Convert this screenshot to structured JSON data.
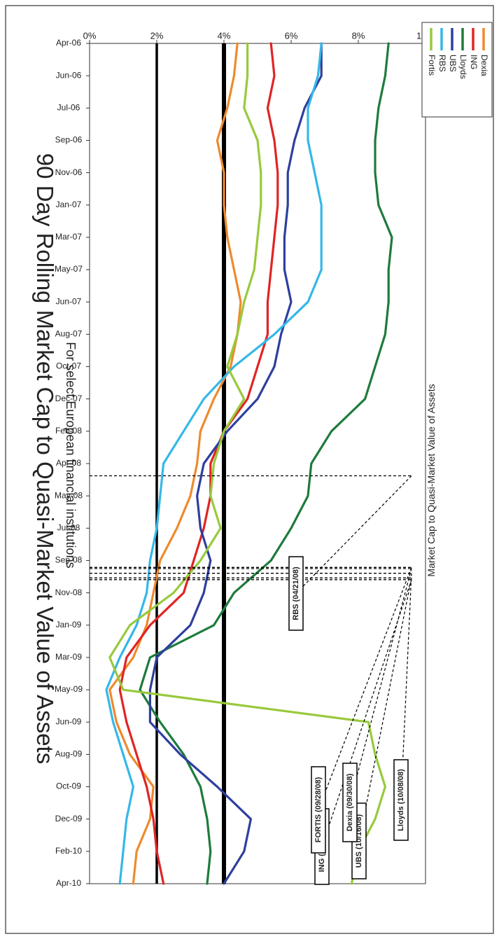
{
  "chart_data": {
    "type": "line",
    "title": "90 Day Rolling Market Cap to Quasi-Market Value of Assets",
    "subtitle": "For select European  financial institutions",
    "ylabel": "Market Cap to Quasi-Market Value of Assets",
    "xlabel": "",
    "orientation": "rotated-90-clockwise",
    "x_ticks": [
      "Apr-06",
      "Jun-06",
      "Jul-06",
      "Sep-06",
      "Nov-06",
      "Jan-07",
      "Mar-07",
      "May-07",
      "Jun-07",
      "Aug-07",
      "Oct-07",
      "Dec-07",
      "Feb-08",
      "Apr-08",
      "May-08",
      "Jul-08",
      "Sep-08",
      "Nov-08",
      "Jan-09",
      "Mar-09",
      "May-09",
      "Jun-09",
      "Aug-09",
      "Oct-09",
      "Dec-09",
      "Feb-10",
      "Apr-10"
    ],
    "y_ticks": [
      "0%",
      "2%",
      "4%",
      "6%",
      "8%",
      "10%"
    ],
    "ylim": [
      0,
      10
    ],
    "reference_lines": [
      2,
      4
    ],
    "legend_placement": "top-right",
    "series": [
      {
        "name": "Dexia",
        "color": "#ee8a2e",
        "values": [
          4.4,
          4.3,
          4.1,
          3.8,
          4.0,
          4.0,
          4.1,
          4.3,
          4.5,
          4.4,
          4.2,
          3.7,
          3.3,
          3.2,
          3.0,
          2.6,
          2.1,
          1.9,
          1.7,
          1.3,
          0.6,
          0.8,
          1.2,
          1.9,
          1.8,
          1.4,
          1.3
        ]
      },
      {
        "name": "ING",
        "color": "#e02424",
        "values": [
          5.4,
          5.5,
          5.3,
          5.5,
          5.6,
          5.6,
          5.5,
          5.4,
          5.3,
          5.3,
          5.0,
          4.7,
          4.0,
          3.6,
          3.6,
          3.4,
          3.1,
          2.8,
          1.8,
          1.1,
          0.9,
          1.1,
          1.4,
          1.7,
          1.9,
          2.0,
          2.2
        ]
      },
      {
        "name": "Lloyds",
        "color": "#1e7b3c",
        "values": [
          8.9,
          8.8,
          8.6,
          8.5,
          8.5,
          8.6,
          9.0,
          8.9,
          8.9,
          8.8,
          8.5,
          8.2,
          7.2,
          6.6,
          6.5,
          6.0,
          5.4,
          4.3,
          3.7,
          1.8,
          1.5,
          2.1,
          2.8,
          3.3,
          3.5,
          3.6,
          3.5
        ]
      },
      {
        "name": "UBS",
        "color": "#2e3f9e",
        "values": [
          6.9,
          6.9,
          6.4,
          6.1,
          5.9,
          5.9,
          5.8,
          5.8,
          6.0,
          5.7,
          5.5,
          5.0,
          4.1,
          3.4,
          3.2,
          3.3,
          3.6,
          3.4,
          3.0,
          2.0,
          1.8,
          1.8,
          2.7,
          3.8,
          4.8,
          4.6,
          4.0
        ]
      },
      {
        "name": "RBS",
        "color": "#35b7e8",
        "values": [
          6.9,
          6.8,
          6.5,
          6.5,
          6.7,
          6.9,
          6.9,
          6.9,
          6.5,
          5.5,
          4.3,
          3.4,
          2.8,
          2.2,
          2.1,
          2.0,
          1.8,
          1.7,
          1.4,
          0.9,
          0.5,
          0.7,
          1.0,
          1.3,
          1.1,
          1.0,
          0.9
        ]
      },
      {
        "name": "Fortis",
        "color": "#98c93c",
        "values": [
          4.7,
          4.7,
          4.6,
          5.0,
          5.1,
          5.1,
          5.0,
          4.9,
          4.6,
          4.4,
          4.1,
          4.6,
          4.0,
          3.7,
          3.6,
          3.9,
          3.3,
          2.5,
          1.2,
          0.6,
          1.0,
          8.3,
          8.5,
          8.8,
          8.5,
          8.0,
          7.8
        ]
      }
    ],
    "annotations": [
      {
        "label": "UBS (10/16/08)",
        "x": "10/16/08"
      },
      {
        "label": "ING (10/19/08)",
        "x": "10/19/08"
      },
      {
        "label": "Lloyds (10/08/08)",
        "x": "10/08/08"
      },
      {
        "label": "Dexia (09/30/08)",
        "x": "09/30/08"
      },
      {
        "label": "FORTIS (09/28/08)",
        "x": "09/28/08"
      },
      {
        "label": "RBS (04/21/08)",
        "x": "04/21/08"
      }
    ]
  }
}
